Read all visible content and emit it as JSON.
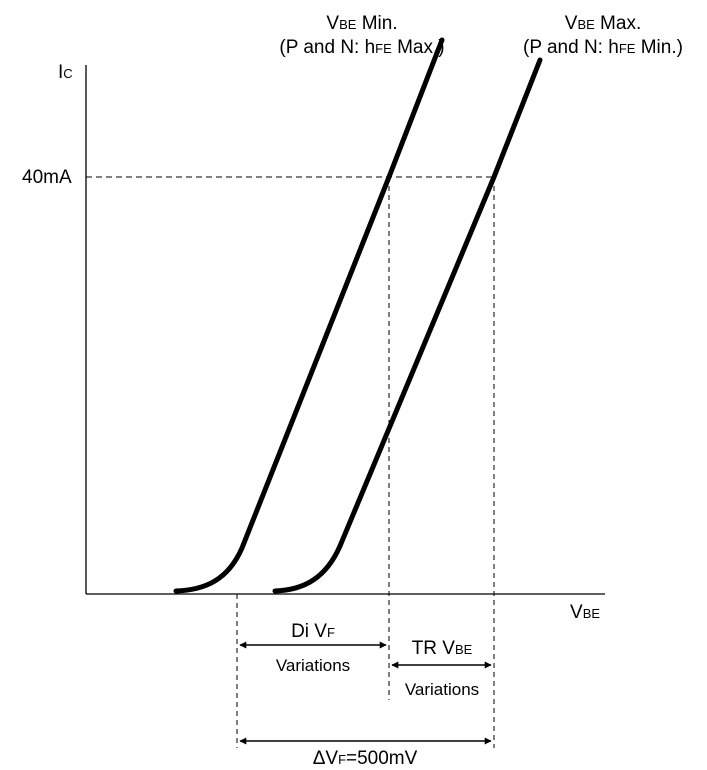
{
  "axes": {
    "y_label": {
      "main": "I",
      "sub": "C"
    },
    "x_label": {
      "main": "V",
      "sub": "BE"
    },
    "y_tick": "40mA"
  },
  "curves": {
    "min": {
      "title_main": "V",
      "title_sub": "BE",
      "title_rest": " Min.",
      "cond_pre": "(P and N: h",
      "cond_sub": "FE",
      "cond_post": " Max.)"
    },
    "max": {
      "title_main": "V",
      "title_sub": "BE",
      "title_rest": " Max.",
      "cond_pre": "(P and N: h",
      "cond_sub": "FE",
      "cond_post": " Min.)"
    }
  },
  "spans": {
    "di_vf": {
      "main": "Di V",
      "sub": "F",
      "caption": "Variations"
    },
    "tr_vbe": {
      "main": "TR V",
      "sub": "BE",
      "caption": "Variations"
    },
    "total": {
      "main": "ΔV",
      "sub": "F",
      "rest": "=500mV"
    }
  },
  "colors": {
    "line": "#000000",
    "background": "#ffffff"
  }
}
